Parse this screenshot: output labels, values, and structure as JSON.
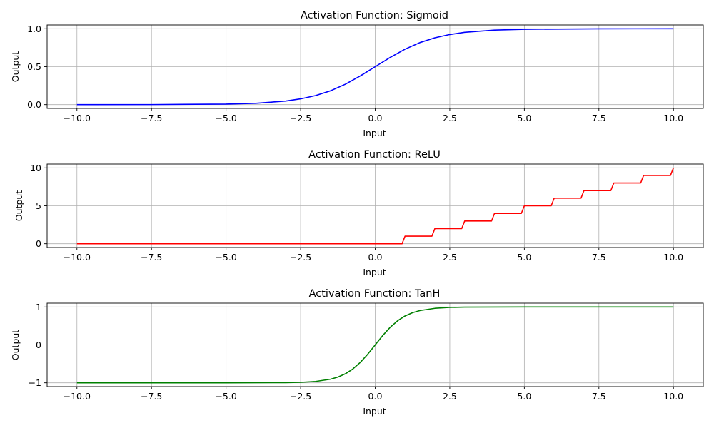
{
  "chart_data": [
    {
      "type": "line",
      "function": "sigmoid",
      "title": "Activation Function: Sigmoid",
      "xlabel": "Input",
      "ylabel": "Output",
      "xlim": [
        -11,
        11
      ],
      "ylim": [
        -0.05,
        1.05
      ],
      "xticks": [
        -10,
        -7.5,
        -5,
        -2.5,
        0,
        2.5,
        5,
        7.5,
        10
      ],
      "xtick_labels": [
        "−10.0",
        "−7.5",
        "−5.0",
        "−2.5",
        "0.0",
        "2.5",
        "5.0",
        "7.5",
        "10.0"
      ],
      "yticks": [
        0,
        0.5,
        1
      ],
      "ytick_labels": [
        "0.0",
        "0.5",
        "1.0"
      ],
      "grid": true,
      "color": "#0000ff",
      "x": [
        -10,
        -7.5,
        -5,
        -4,
        -3,
        -2.5,
        -2,
        -1.5,
        -1,
        -0.5,
        0,
        0.5,
        1,
        1.5,
        2,
        2.5,
        3,
        4,
        5,
        7.5,
        10
      ],
      "y": [
        0.0,
        0.0006,
        0.0067,
        0.018,
        0.047,
        0.076,
        0.119,
        0.182,
        0.269,
        0.378,
        0.5,
        0.622,
        0.731,
        0.818,
        0.881,
        0.924,
        0.953,
        0.982,
        0.993,
        0.999,
        1.0
      ]
    },
    {
      "type": "line",
      "function": "relu",
      "title": "Activation Function: ReLU",
      "xlabel": "Input",
      "ylabel": "Output",
      "xlim": [
        -11,
        11
      ],
      "ylim": [
        -0.5,
        10.5
      ],
      "xticks": [
        -10,
        -7.5,
        -5,
        -2.5,
        0,
        2.5,
        5,
        7.5,
        10
      ],
      "xtick_labels": [
        "−10.0",
        "−7.5",
        "−5.0",
        "−2.5",
        "0.0",
        "2.5",
        "5.0",
        "7.5",
        "10.0"
      ],
      "yticks": [
        0,
        5,
        10
      ],
      "ytick_labels": [
        "0",
        "5",
        "10"
      ],
      "grid": true,
      "color": "#ff0000",
      "x": [
        -10,
        0.9,
        1.0,
        1.9,
        2.0,
        2.9,
        3.0,
        3.9,
        4.0,
        4.9,
        5.0,
        5.9,
        6.0,
        6.9,
        7.0,
        7.9,
        8.0,
        8.9,
        9.0,
        9.9,
        10.0
      ],
      "y": [
        0,
        0,
        1,
        1,
        2,
        2,
        3,
        3,
        4,
        4,
        5,
        5,
        6,
        6,
        7,
        7,
        8,
        8,
        9,
        9,
        10
      ]
    },
    {
      "type": "line",
      "function": "tanh",
      "title": "Activation Function: TanH",
      "xlabel": "Input",
      "ylabel": "Output",
      "xlim": [
        -11,
        11
      ],
      "ylim": [
        -1.1,
        1.1
      ],
      "xticks": [
        -10,
        -7.5,
        -5,
        -2.5,
        0,
        2.5,
        5,
        7.5,
        10
      ],
      "xtick_labels": [
        "−10.0",
        "−7.5",
        "−5.0",
        "−2.5",
        "0.0",
        "2.5",
        "5.0",
        "7.5",
        "10.0"
      ],
      "yticks": [
        -1,
        0,
        1
      ],
      "ytick_labels": [
        "−1",
        "0",
        "1"
      ],
      "grid": true,
      "color": "#008000",
      "x": [
        -10,
        -5,
        -3,
        -2.5,
        -2,
        -1.5,
        -1.25,
        -1,
        -0.75,
        -0.5,
        -0.25,
        0,
        0.25,
        0.5,
        0.75,
        1,
        1.25,
        1.5,
        2,
        2.5,
        3,
        5,
        10
      ],
      "y": [
        -1.0,
        -1.0,
        -0.995,
        -0.987,
        -0.964,
        -0.905,
        -0.848,
        -0.762,
        -0.635,
        -0.462,
        -0.245,
        0,
        0.245,
        0.462,
        0.635,
        0.762,
        0.848,
        0.905,
        0.964,
        0.987,
        0.995,
        1.0,
        1.0
      ]
    }
  ]
}
